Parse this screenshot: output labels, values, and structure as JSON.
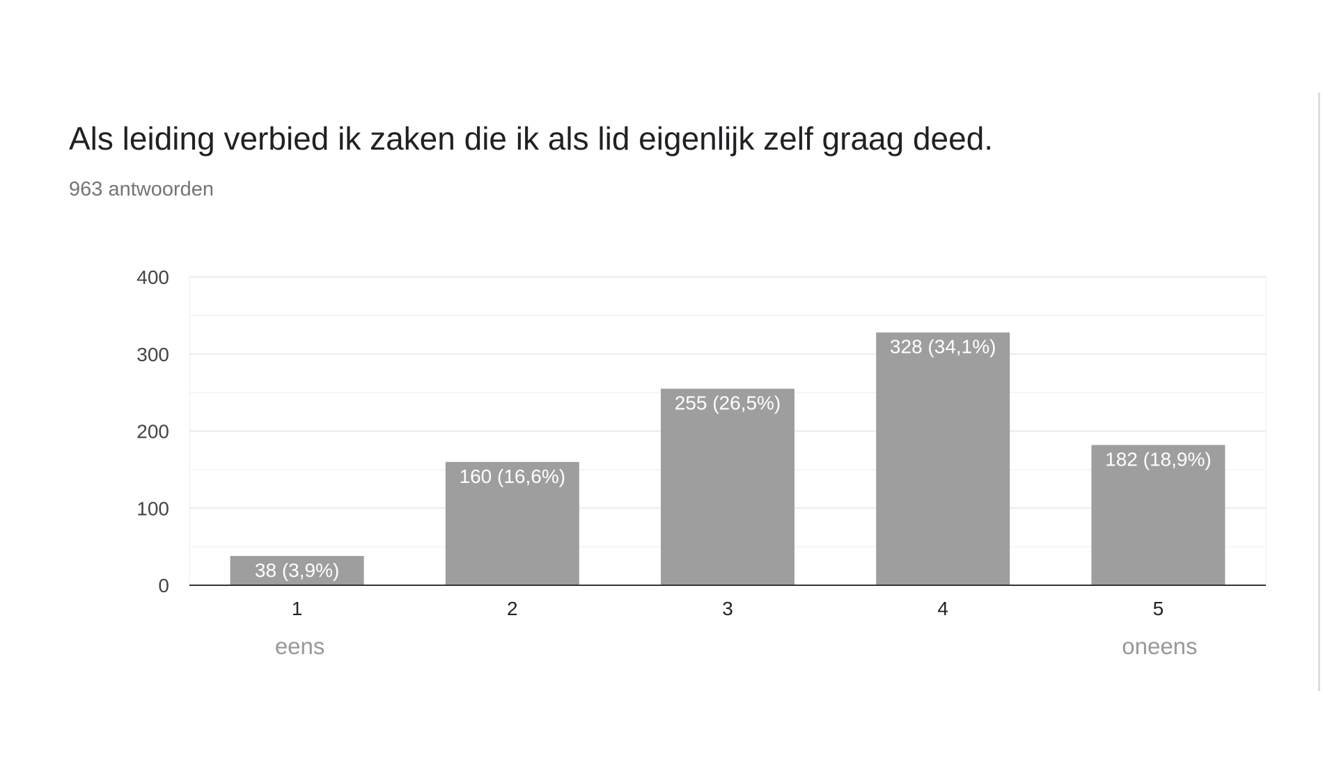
{
  "question": {
    "title": "Als leiding verbied ik zaken die ik als lid eigenlijk zelf graag deed.",
    "response_count": "963 antwoorden"
  },
  "chart_data": {
    "type": "bar",
    "title": "Als leiding verbied ik zaken die ik als lid eigenlijk zelf graag deed.",
    "subtitle": "963 antwoorden",
    "categories": [
      "1",
      "2",
      "3",
      "4",
      "5"
    ],
    "values": [
      38,
      160,
      255,
      328,
      182
    ],
    "data_labels": [
      "38 (3,9%)",
      "160 (16,6%)",
      "255 (26,5%)",
      "328 (34,1%)",
      "182 (18,9%)"
    ],
    "scale_end_labels": {
      "low": "eens",
      "high": "oneens"
    },
    "yticks": [
      0,
      100,
      200,
      300,
      400
    ],
    "ylim": [
      0,
      400
    ],
    "xlabel": "",
    "ylabel": "",
    "grid": true,
    "bar_color": "#9e9e9e",
    "label_color": "#ffffff",
    "scale_label_color": "#9a969b"
  }
}
